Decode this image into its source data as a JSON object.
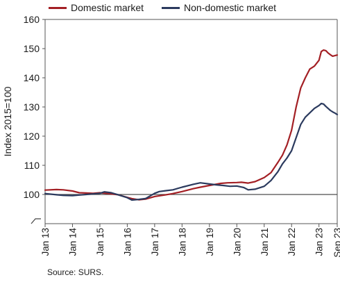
{
  "chart_data": {
    "type": "line",
    "ylabel": "Index 2015=100",
    "ylim": [
      90,
      160
    ],
    "yticks": [
      100,
      110,
      120,
      130,
      140,
      150,
      160
    ],
    "ytick_labels": [
      "100",
      "110",
      "120",
      "130",
      "140",
      "150",
      "160"
    ],
    "x_start": "2013-01",
    "x_end": "2023-09",
    "xticks": [
      "Jan 13",
      "Jan 14",
      "Jan 15",
      "Jan 16",
      "Jan 17",
      "Jan 18",
      "Jan 19",
      "Jan 20",
      "Jan 21",
      "Jan 22",
      "Jan 23",
      "Sep 23"
    ],
    "xtick_dates": [
      "2013-01",
      "2014-01",
      "2015-01",
      "2016-01",
      "2017-01",
      "2018-01",
      "2019-01",
      "2020-01",
      "2021-01",
      "2022-01",
      "2023-01",
      "2023-09"
    ],
    "reference_line": 100,
    "axis_break": true,
    "grid": false,
    "legend_position": "top",
    "series": [
      {
        "name": "Domestic market",
        "color": "#a31f24",
        "points": [
          [
            "2013-01",
            101.5
          ],
          [
            "2013-06",
            101.7
          ],
          [
            "2013-09",
            101.6
          ],
          [
            "2014-01",
            101.2
          ],
          [
            "2014-04",
            100.6
          ],
          [
            "2014-07",
            100.5
          ],
          [
            "2014-10",
            100.4
          ],
          [
            "2015-01",
            100.6
          ],
          [
            "2015-06",
            100.2
          ],
          [
            "2015-09",
            99.9
          ],
          [
            "2016-01",
            99.0
          ],
          [
            "2016-03",
            98.6
          ],
          [
            "2016-06",
            98.2
          ],
          [
            "2016-09",
            98.4
          ],
          [
            "2017-01",
            99.3
          ],
          [
            "2017-06",
            99.9
          ],
          [
            "2017-09",
            100.3
          ],
          [
            "2018-01",
            101.0
          ],
          [
            "2018-06",
            102.0
          ],
          [
            "2018-09",
            102.5
          ],
          [
            "2019-01",
            103.1
          ],
          [
            "2019-06",
            103.8
          ],
          [
            "2019-09",
            104.0
          ],
          [
            "2020-01",
            104.1
          ],
          [
            "2020-03",
            104.2
          ],
          [
            "2020-06",
            103.9
          ],
          [
            "2020-09",
            104.4
          ],
          [
            "2021-01",
            105.8
          ],
          [
            "2021-04",
            107.5
          ],
          [
            "2021-07",
            111.0
          ],
          [
            "2021-09",
            113.5
          ],
          [
            "2021-11",
            117.0
          ],
          [
            "2022-01",
            122.0
          ],
          [
            "2022-03",
            130.0
          ],
          [
            "2022-05",
            136.5
          ],
          [
            "2022-07",
            140.0
          ],
          [
            "2022-09",
            143.0
          ],
          [
            "2022-11",
            144.0
          ],
          [
            "2023-01",
            146.0
          ],
          [
            "2023-02",
            149.0
          ],
          [
            "2023-03",
            149.5
          ],
          [
            "2023-04",
            149.3
          ],
          [
            "2023-05",
            148.5
          ],
          [
            "2023-06",
            147.9
          ],
          [
            "2023-07",
            147.4
          ],
          [
            "2023-08",
            147.6
          ],
          [
            "2023-09",
            147.8
          ]
        ]
      },
      {
        "name": "Non-domestic market",
        "color": "#2b3a5e",
        "points": [
          [
            "2013-01",
            100.3
          ],
          [
            "2013-06",
            99.9
          ],
          [
            "2013-09",
            99.7
          ],
          [
            "2014-01",
            99.6
          ],
          [
            "2014-04",
            99.8
          ],
          [
            "2014-07",
            100.0
          ],
          [
            "2014-10",
            100.2
          ],
          [
            "2015-01",
            100.4
          ],
          [
            "2015-03",
            100.9
          ],
          [
            "2015-06",
            100.6
          ],
          [
            "2015-09",
            99.9
          ],
          [
            "2016-01",
            98.9
          ],
          [
            "2016-03",
            98.1
          ],
          [
            "2016-06",
            98.3
          ],
          [
            "2016-09",
            98.6
          ],
          [
            "2017-01",
            100.4
          ],
          [
            "2017-03",
            101.0
          ],
          [
            "2017-06",
            101.3
          ],
          [
            "2017-09",
            101.6
          ],
          [
            "2018-01",
            102.5
          ],
          [
            "2018-06",
            103.5
          ],
          [
            "2018-09",
            104.0
          ],
          [
            "2019-01",
            103.6
          ],
          [
            "2019-04",
            103.3
          ],
          [
            "2019-07",
            103.1
          ],
          [
            "2019-10",
            102.8
          ],
          [
            "2020-01",
            102.9
          ],
          [
            "2020-04",
            102.4
          ],
          [
            "2020-06",
            101.6
          ],
          [
            "2020-09",
            101.8
          ],
          [
            "2021-01",
            102.8
          ],
          [
            "2021-04",
            104.8
          ],
          [
            "2021-07",
            107.8
          ],
          [
            "2021-09",
            110.5
          ],
          [
            "2021-11",
            112.5
          ],
          [
            "2022-01",
            115.0
          ],
          [
            "2022-03",
            119.5
          ],
          [
            "2022-05",
            124.0
          ],
          [
            "2022-07",
            126.5
          ],
          [
            "2022-09",
            128.0
          ],
          [
            "2022-11",
            129.5
          ],
          [
            "2023-01",
            130.5
          ],
          [
            "2023-02",
            131.2
          ],
          [
            "2023-03",
            131.0
          ],
          [
            "2023-04",
            130.2
          ],
          [
            "2023-05",
            129.5
          ],
          [
            "2023-06",
            128.8
          ],
          [
            "2023-07",
            128.3
          ],
          [
            "2023-08",
            127.9
          ],
          [
            "2023-09",
            127.4
          ]
        ]
      }
    ]
  },
  "source_text": "Source: SURS."
}
